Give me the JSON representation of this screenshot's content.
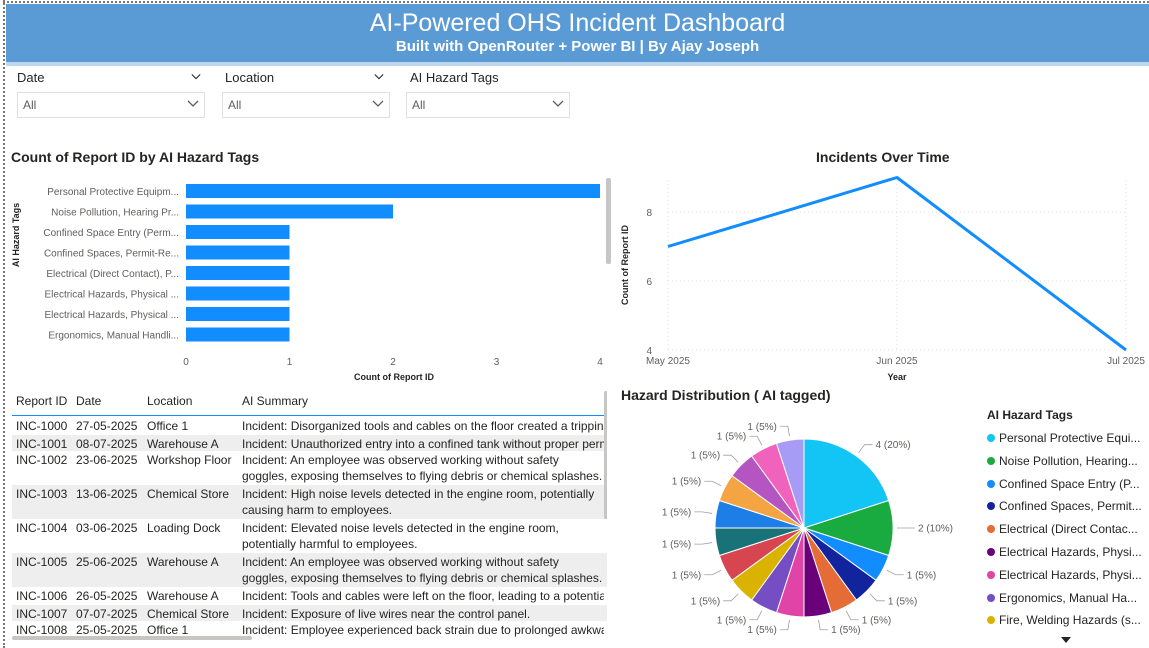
{
  "header": {
    "title": "AI-Powered OHS Incident Dashboard",
    "subtitle": "Built with OpenRouter + Power BI | By Ajay Joseph"
  },
  "slicers": [
    {
      "label": "Date",
      "value": "All"
    },
    {
      "label": "Location",
      "value": "All"
    },
    {
      "label": "AI Hazard Tags",
      "value": "All"
    }
  ],
  "bar_title": "Count of Report ID by AI Hazard Tags",
  "line_title": "Incidents Over Time",
  "pie_title": "Hazard Distribution ( AI tagged)",
  "chart_data": [
    {
      "type": "bar",
      "orientation": "horizontal",
      "title": "Count of Report ID by AI Hazard Tags",
      "xlabel": "Count of Report ID",
      "ylabel": "AI Hazard Tags",
      "categories": [
        "Personal Protective Equipm...",
        "Noise Pollution, Hearing Pr...",
        "Confined Space Entry (Perm...",
        "Confined Spaces, Permit-Re...",
        "Electrical (Direct Contact), P...",
        "Electrical Hazards, Physical ...",
        "Electrical Hazards, Physical ...",
        "Ergonomics, Manual Handli..."
      ],
      "values": [
        4,
        2,
        1,
        1,
        1,
        1,
        1,
        1
      ],
      "xlim": [
        0,
        4
      ],
      "xticks": [
        0,
        1,
        2,
        3,
        4
      ],
      "color": "#118dff"
    },
    {
      "type": "line",
      "title": "Incidents Over Time",
      "xlabel": "Year",
      "ylabel": "Count of Report ID",
      "categories": [
        "May 2025",
        "Jun 2025",
        "Jul 2025"
      ],
      "values": [
        7,
        9,
        4
      ],
      "ylim": [
        4,
        9
      ],
      "yticks": [
        4,
        6,
        8
      ],
      "grid": true,
      "color": "#118dff"
    },
    {
      "type": "pie",
      "title": "Hazard Distribution ( AI tagged)",
      "legend_title": "AI Hazard Tags",
      "legend_position": "right",
      "slices": [
        {
          "name": "Personal Protective Equi...",
          "value": 4,
          "label": "4 (20%)",
          "color": "#12c5f4"
        },
        {
          "name": "Noise Pollution, Hearing...",
          "value": 2,
          "label": "2 (10%)",
          "color": "#1aab40"
        },
        {
          "name": "Confined Space Entry (P...",
          "value": 1,
          "label": "1 (5%)",
          "color": "#118dff"
        },
        {
          "name": "Confined Spaces, Permit...",
          "value": 1,
          "label": "1 (5%)",
          "color": "#12239e"
        },
        {
          "name": "Electrical (Direct Contac...",
          "value": 1,
          "label": "1 (5%)",
          "color": "#e66c37"
        },
        {
          "name": "Electrical Hazards, Physi...",
          "value": 1,
          "label": "1 (5%)",
          "color": "#6b007b"
        },
        {
          "name": "Electrical Hazards, Physi...",
          "value": 1,
          "label": "1 (5%)",
          "color": "#e044a7"
        },
        {
          "name": "Ergonomics, Manual Ha...",
          "value": 1,
          "label": "1 (5%)",
          "color": "#744ec2"
        },
        {
          "name": "Fire, Welding Hazards (s...",
          "value": 1,
          "label": "1 (5%)",
          "color": "#d9b300"
        },
        {
          "name": "",
          "value": 1,
          "label": "1 (5%)",
          "color": "#d64550"
        },
        {
          "name": "",
          "value": 1,
          "label": "1 (5%)",
          "color": "#197278"
        },
        {
          "name": "",
          "value": 1,
          "label": "1 (5%)",
          "color": "#1c7ee6"
        },
        {
          "name": "",
          "value": 1,
          "label": "1 (5%)",
          "color": "#f5a443"
        },
        {
          "name": "",
          "value": 1,
          "label": "1 (5%)",
          "color": "#b455c2"
        },
        {
          "name": "",
          "value": 1,
          "label": "1 (5%)",
          "color": "#f062bb"
        },
        {
          "name": "",
          "value": 1,
          "label": "1 (5%)",
          "color": "#a79cf5"
        }
      ]
    }
  ],
  "table": {
    "columns": [
      "Report ID",
      "Date",
      "Location",
      "AI Summary"
    ],
    "rows": [
      {
        "id": "INC-1000",
        "date": "27-05-2025",
        "location": "Office 1",
        "summary": "Incident: Disorganized tools and cables on the floor created a tripping hazard."
      },
      {
        "id": "INC-1001",
        "date": "08-07-2025",
        "location": "Warehouse A",
        "summary": "Incident: Unauthorized entry into a confined tank without proper permit."
      },
      {
        "id": "INC-1002",
        "date": "23-06-2025",
        "location": "Workshop Floor",
        "summary": "Incident: An employee was observed working without safety goggles, exposing themselves to flying debris or chemical splashes."
      },
      {
        "id": "INC-1003",
        "date": "13-06-2025",
        "location": "Chemical Store",
        "summary": "Incident: High noise levels detected in the engine room, potentially causing harm to employees."
      },
      {
        "id": "INC-1004",
        "date": "03-06-2025",
        "location": "Loading Dock",
        "summary": "Incident: Elevated noise levels detected in the engine room, potentially harmful to employees."
      },
      {
        "id": "INC-1005",
        "date": "25-06-2025",
        "location": "Warehouse A",
        "summary": "Incident: An employee was observed working without safety goggles, exposing themselves to flying debris or chemical splashes."
      },
      {
        "id": "INC-1006",
        "date": "26-05-2025",
        "location": "Warehouse A",
        "summary": "Incident: Tools and cables were left on the floor, leading to a potential trip hazard."
      },
      {
        "id": "INC-1007",
        "date": "07-07-2025",
        "location": "Chemical Store",
        "summary": "Incident: Exposure of live wires near the control panel."
      },
      {
        "id": "INC-1008",
        "date": "25-05-2025",
        "location": "Office 1",
        "summary": "Incident: Employee experienced back strain due to prolonged awkward posture."
      }
    ]
  },
  "colors": {
    "header_bg": "#5b9bd5",
    "accent": "#118dff"
  }
}
